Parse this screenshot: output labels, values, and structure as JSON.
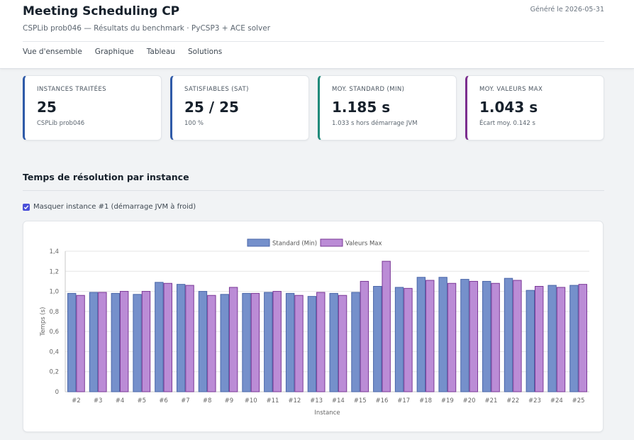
{
  "header": {
    "title": "Meeting Scheduling CP",
    "subtitle": "CSPLib prob046 — Résultats du benchmark · PyCSP3 + ACE solver",
    "generated": "Généré le 2026-05-31"
  },
  "nav": {
    "items": [
      "Vue d'ensemble",
      "Graphique",
      "Tableau",
      "Solutions"
    ]
  },
  "cards": [
    {
      "label": "Instances traitées",
      "value": "25",
      "sub": "CSPLib prob046"
    },
    {
      "label": "Satisfiables (SAT)",
      "value": "25 / 25",
      "sub": "100 %"
    },
    {
      "label": "Moy. standard (min)",
      "value": "1.185 s",
      "sub": "1.033 s hors démarrage JVM"
    },
    {
      "label": "Moy. valeurs max",
      "value": "1.043 s",
      "sub": "Écart moy. 0.142 s"
    }
  ],
  "section": {
    "title": "Temps de résolution par instance",
    "checkbox_label": "Masquer instance #1 (démarrage JVM à froid)",
    "checkbox_checked": true
  },
  "colors": {
    "card_accent_blue": "#2f5aa8",
    "card_accent_teal": "#1f8a7a",
    "card_accent_purple": "#7b2d8e",
    "standard_fill": "#7590cb",
    "standard_border": "#4a66a8",
    "max_fill": "#bb8cd6",
    "max_border": "#7a3896",
    "checkbox": "#4a4fd8"
  },
  "chart_data": {
    "type": "bar",
    "categories": [
      "#2",
      "#3",
      "#4",
      "#5",
      "#6",
      "#7",
      "#8",
      "#9",
      "#10",
      "#11",
      "#12",
      "#13",
      "#14",
      "#15",
      "#16",
      "#17",
      "#18",
      "#19",
      "#20",
      "#21",
      "#22",
      "#23",
      "#24",
      "#25"
    ],
    "series": [
      {
        "name": "Standard (Min)",
        "values": [
          0.98,
          0.99,
          0.98,
          0.97,
          1.09,
          1.07,
          1.0,
          0.97,
          0.98,
          0.99,
          0.98,
          0.95,
          0.98,
          0.99,
          1.05,
          1.04,
          1.14,
          1.14,
          1.12,
          1.1,
          1.13,
          1.01,
          1.06,
          1.06
        ]
      },
      {
        "name": "Valeurs Max",
        "values": [
          0.96,
          0.99,
          1.0,
          1.0,
          1.08,
          1.06,
          0.96,
          1.04,
          0.98,
          1.0,
          0.96,
          0.99,
          0.96,
          1.1,
          1.3,
          1.03,
          1.11,
          1.08,
          1.1,
          1.08,
          1.11,
          1.05,
          1.04,
          1.07
        ]
      }
    ],
    "xlabel": "Instance",
    "ylabel": "Temps (s)",
    "ylim": [
      0,
      1.4
    ],
    "yticks": [
      "0",
      "0,2",
      "0,4",
      "0,6",
      "0,8",
      "1,0",
      "1,2",
      "1,4"
    ],
    "grid": true,
    "legend": "top-center"
  }
}
